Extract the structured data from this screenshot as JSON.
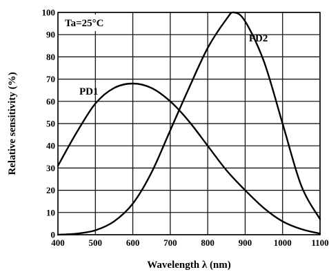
{
  "chart_data": {
    "type": "line",
    "xlabel": "Wavelength λ (nm)",
    "ylabel": "Relative sensitivity (%)",
    "annotation": "Ta=25°C",
    "xlim": [
      400,
      1100
    ],
    "ylim": [
      0,
      100
    ],
    "x_ticks": [
      "400",
      "500",
      "600",
      "700",
      "800",
      "900",
      "1000",
      "1100"
    ],
    "y_ticks": [
      "0",
      "10",
      "20",
      "30",
      "40",
      "50",
      "60",
      "70",
      "80",
      "90",
      "100"
    ],
    "grid": true,
    "series": [
      {
        "name": "PD1",
        "x": [
          400,
          450,
          500,
          550,
          600,
          650,
          700,
          750,
          800,
          850,
          900,
          950,
          1000,
          1050,
          1100
        ],
        "y": [
          31,
          46,
          59,
          66,
          68,
          66,
          60,
          51,
          40,
          29,
          20,
          12,
          6,
          2.5,
          0.5
        ]
      },
      {
        "name": "PD2",
        "x": [
          400,
          450,
          500,
          550,
          600,
          650,
          700,
          750,
          800,
          850,
          870,
          900,
          950,
          1000,
          1050,
          1100
        ],
        "y": [
          0,
          0.5,
          2,
          6,
          14,
          28,
          47,
          66,
          84,
          97,
          100,
          96,
          78,
          50,
          22,
          7
        ]
      }
    ]
  }
}
